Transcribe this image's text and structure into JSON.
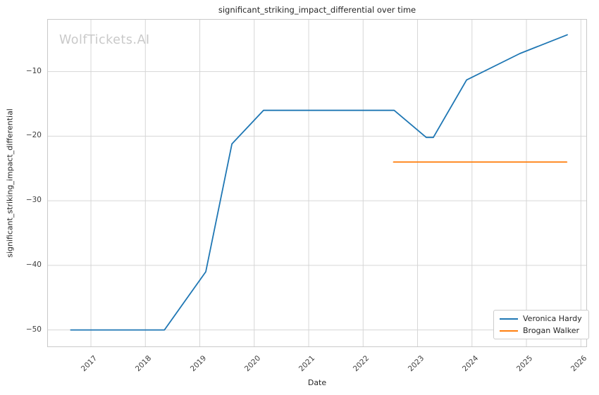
{
  "watermark": "WolfTickets.AI",
  "chart_data": {
    "type": "line",
    "title": "significant_striking_impact_differential over time",
    "xlabel": "Date",
    "ylabel": "significant_striking_impact_differential",
    "xlim": [
      2016.21,
      2026.1
    ],
    "ylim": [
      -52.55,
      -1.97
    ],
    "xticks": [
      2017,
      2018,
      2019,
      2020,
      2021,
      2022,
      2023,
      2024,
      2025,
      2026
    ],
    "yticks": [
      -10,
      -20,
      -30,
      -40,
      -50
    ],
    "grid": true,
    "grid_color": "#d6d6d6",
    "legend_position": "lower right",
    "series": [
      {
        "name": "Veronica Hardy",
        "color": "#1f77b4",
        "points": [
          [
            2016.63,
            -50
          ],
          [
            2018.35,
            -50
          ],
          [
            2019.11,
            -41
          ],
          [
            2019.59,
            -21.2
          ],
          [
            2020.17,
            -16
          ],
          [
            2022.57,
            -16
          ],
          [
            2023.16,
            -20.2
          ],
          [
            2023.29,
            -20.2
          ],
          [
            2023.9,
            -11.3
          ],
          [
            2024.88,
            -7.2
          ],
          [
            2025.75,
            -4.3
          ]
        ]
      },
      {
        "name": "Brogan Walker",
        "color": "#ff7f0e",
        "points": [
          [
            2022.56,
            -24
          ],
          [
            2025.74,
            -24
          ]
        ]
      }
    ]
  }
}
